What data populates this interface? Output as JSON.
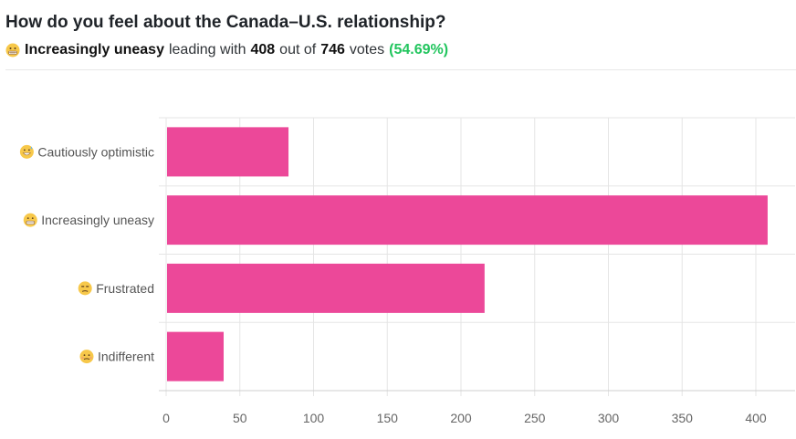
{
  "poll": {
    "question": "How do you feel about the Canada–U.S. relationship?",
    "leader_label": "Increasingly uneasy",
    "leading_with_text": "leading with",
    "leader_votes": "408",
    "out_of_text": "out of",
    "total_votes": "746",
    "votes_text": "votes",
    "leader_pct": "(54.69%)"
  },
  "colors": {
    "bar": "#ec4899",
    "percent": "#22c55e",
    "grid": "#e5e5e5"
  },
  "chart_data": {
    "type": "bar",
    "orientation": "horizontal",
    "categories": [
      "Cautiously optimistic",
      "Increasingly uneasy",
      "Frustrated",
      "Indifferent"
    ],
    "category_icons": [
      "grinning-sweat-face-icon",
      "grimacing-face-icon",
      "unamused-face-icon",
      "neutral-face-icon"
    ],
    "values": [
      83,
      408,
      216,
      39
    ],
    "xlim": [
      0,
      420
    ],
    "xticks": [
      0,
      50,
      100,
      150,
      200,
      250,
      300,
      350,
      400
    ],
    "title": "How do you feel about the Canada–U.S. relationship?",
    "xlabel": "",
    "ylabel": "",
    "grid": true
  }
}
